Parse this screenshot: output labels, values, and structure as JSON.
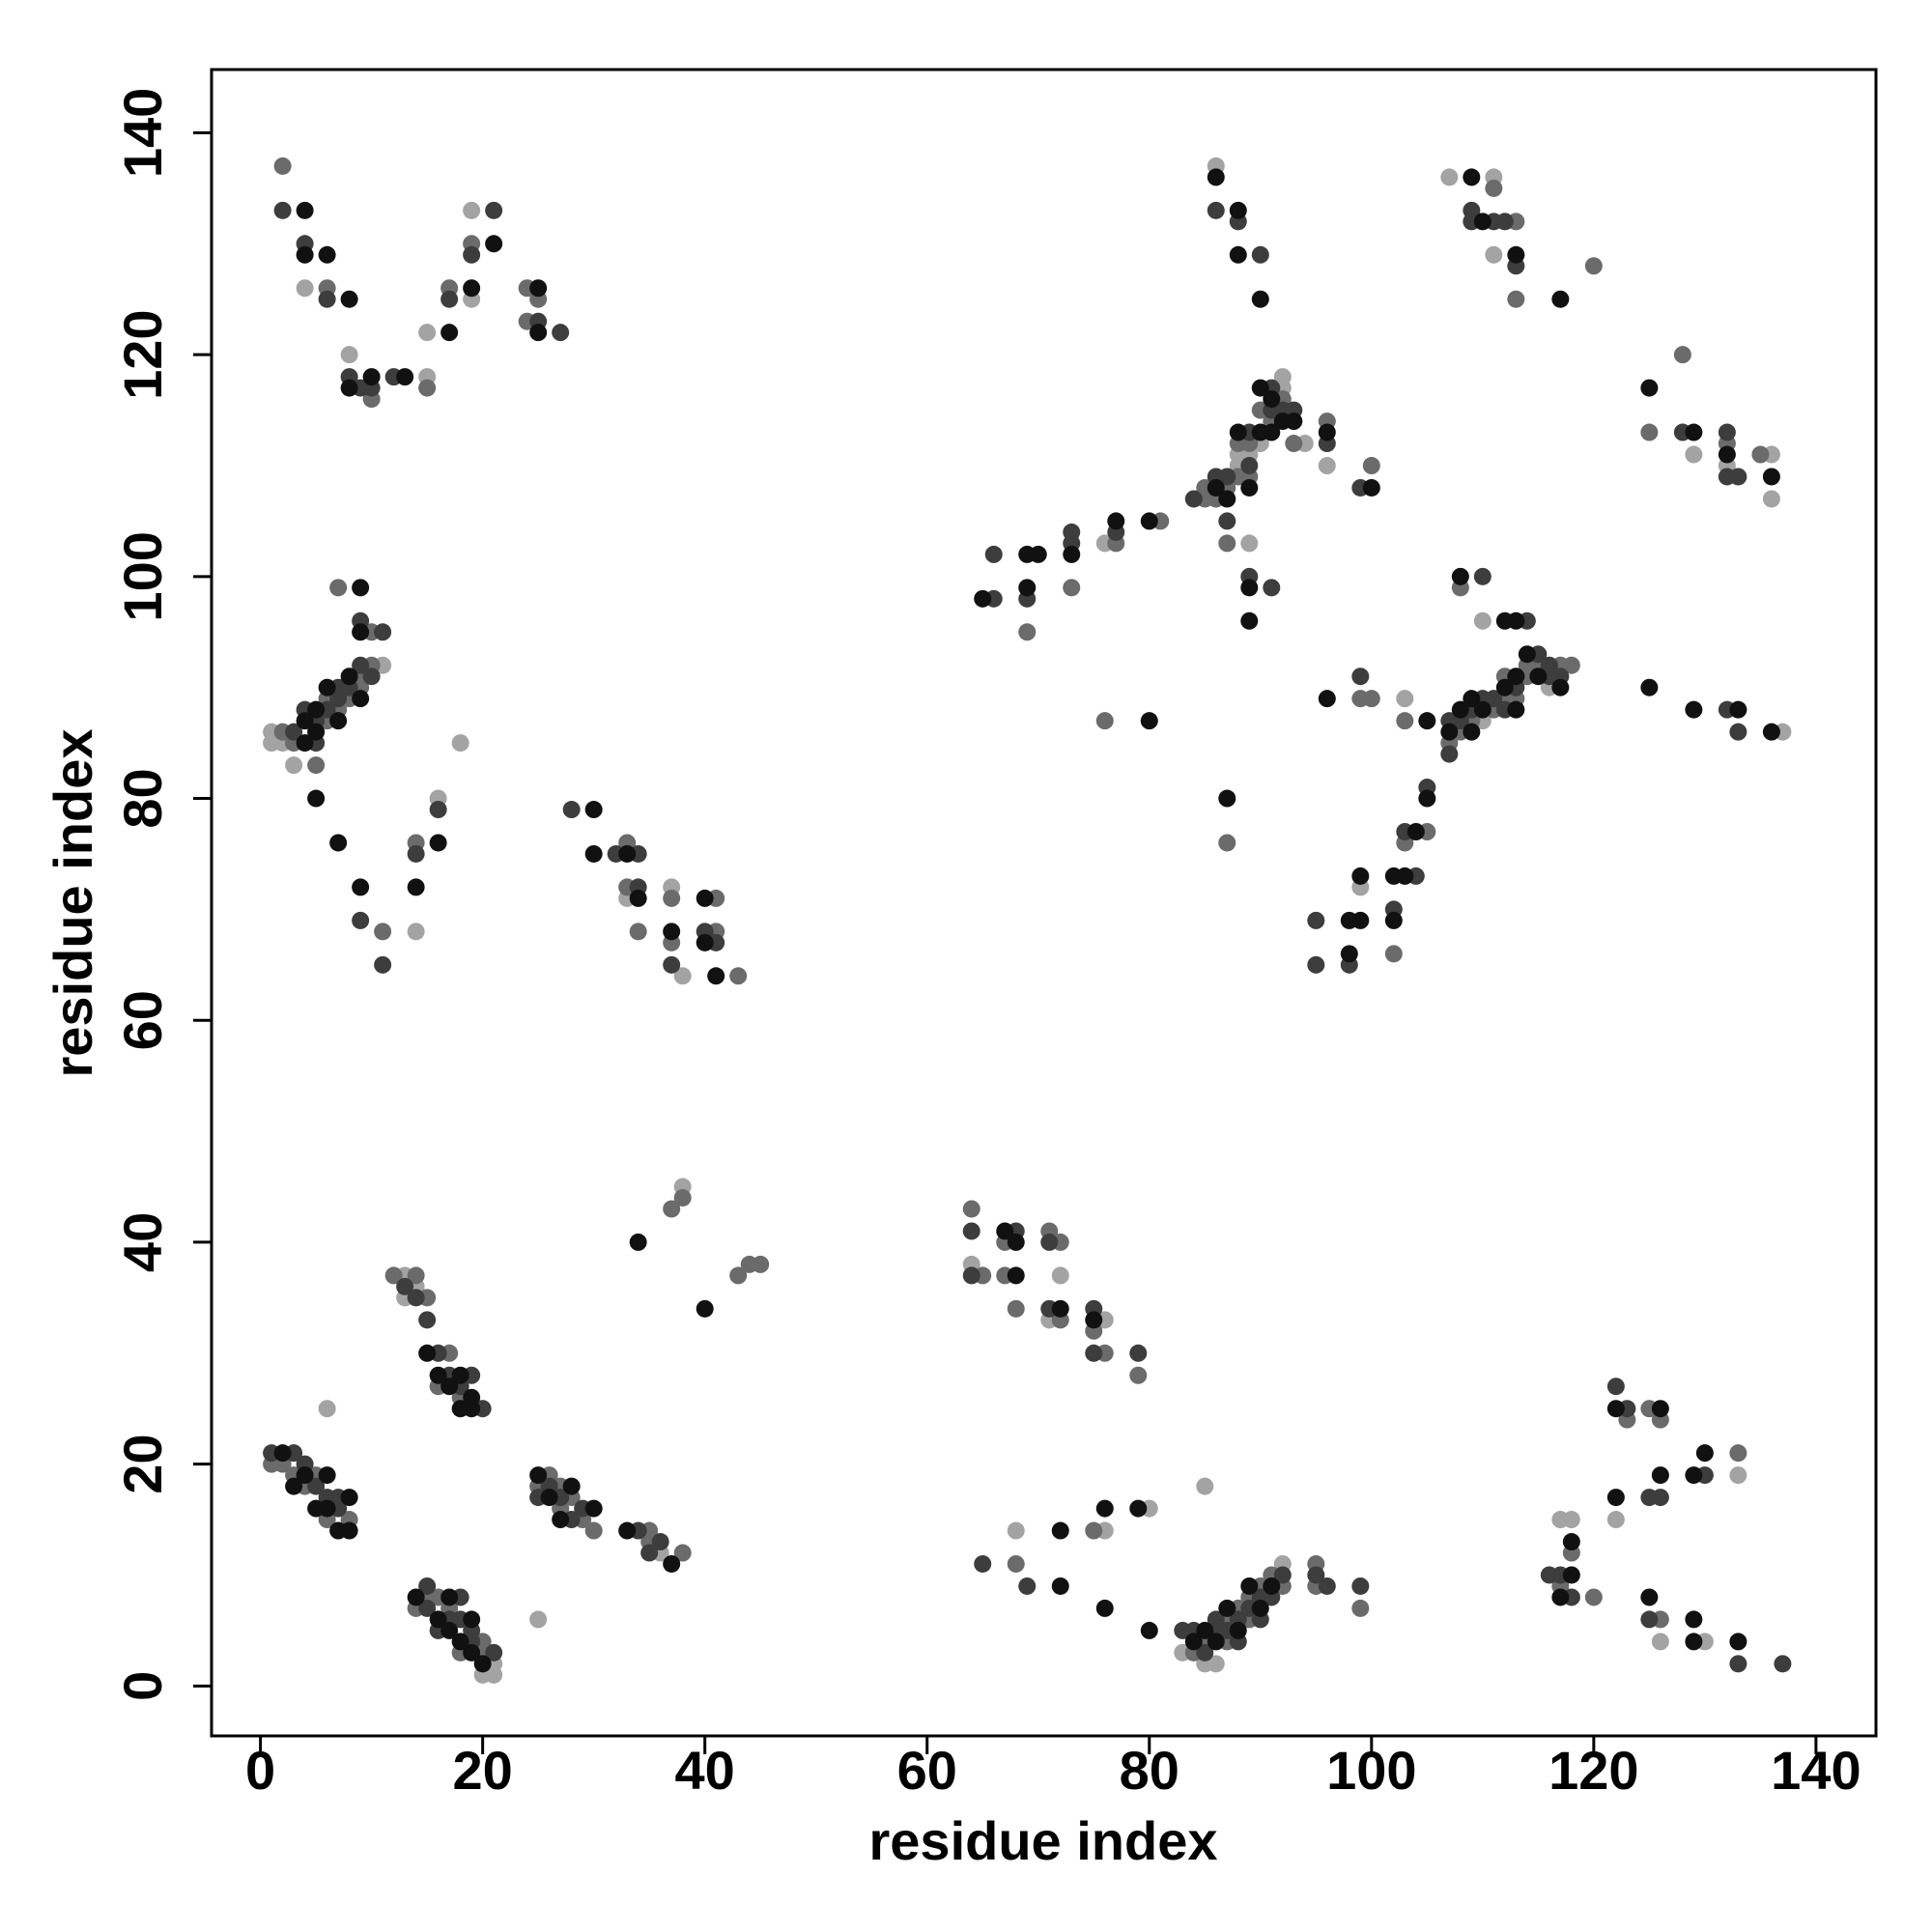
{
  "chart_data": {
    "type": "scatter",
    "xlabel": "residue index",
    "ylabel": "residue index",
    "xlim": [
      -4.4,
      145.4
    ],
    "ylim": [
      -4.5,
      145.7
    ],
    "xticks": [
      0,
      20,
      40,
      60,
      80,
      100,
      120,
      140
    ],
    "yticks": [
      0,
      20,
      40,
      60,
      80,
      100,
      120,
      140
    ],
    "series": [
      {
        "color": "#a3a3a3",
        "x": [
          6,
          13,
          13,
          14,
          20,
          21,
          21,
          25,
          36,
          38,
          64,
          68,
          72,
          71,
          76,
          76,
          80,
          83,
          85,
          86,
          85,
          92,
          117,
          118,
          122,
          126,
          130,
          133,
          4,
          8,
          15,
          15,
          19,
          19,
          1,
          1,
          2,
          3,
          11,
          14,
          16,
          18,
          33,
          37,
          38,
          86,
          111,
          111,
          107,
          76,
          89,
          88,
          88,
          89,
          90,
          92,
          92,
          94,
          96,
          129,
          132,
          136,
          136,
          110,
          110,
          137,
          99,
          103,
          110,
          116
        ],
        "values": [
          25,
          37,
          35,
          36,
          1,
          1,
          2,
          6,
          12,
          45,
          38,
          14,
          37,
          33,
          33,
          14,
          16,
          3,
          2,
          2,
          18,
          11,
          15,
          15,
          15,
          4,
          4,
          19,
          126,
          120,
          122,
          118,
          133,
          125,
          86,
          85,
          85,
          83,
          92,
          68,
          80,
          85,
          71,
          72,
          64,
          137,
          136,
          129,
          136,
          103,
          103,
          110,
          111,
          111,
          112,
          118,
          117,
          112,
          110,
          111,
          110,
          111,
          107,
          96,
          88,
          86,
          72,
          89,
          87,
          90
        ]
      },
      {
        "color": "#6b6b6b",
        "x": [
          1,
          2,
          3,
          4,
          5,
          6,
          8,
          12,
          14,
          15,
          16,
          17,
          18,
          14,
          15,
          16,
          17,
          18,
          20,
          20,
          25,
          26,
          27,
          27,
          28,
          29,
          30,
          35,
          35,
          38,
          37,
          38,
          43,
          44,
          45,
          64,
          65,
          67,
          67,
          68,
          71,
          72,
          72,
          75,
          76,
          79,
          68,
          75,
          84,
          85,
          87,
          87,
          88,
          89,
          89,
          90,
          91,
          92,
          95,
          95,
          99,
          117,
          118,
          120,
          123,
          125,
          126,
          126,
          133,
          2,
          6,
          10,
          15,
          17,
          19,
          24,
          25,
          24,
          2,
          3,
          5,
          6,
          6,
          7,
          7,
          8,
          9,
          9,
          10,
          10,
          11,
          14,
          33,
          33,
          34,
          37,
          37,
          41,
          41,
          43,
          113,
          113,
          120,
          111,
          69,
          73,
          77,
          81,
          85,
          85,
          86,
          87,
          87,
          88,
          88,
          89,
          89,
          90,
          91,
          92,
          93,
          96,
          100,
          87,
          76,
          125,
          128,
          132,
          135,
          108,
          99,
          100,
          102,
          103,
          103,
          105,
          107,
          108,
          109,
          111,
          112,
          112,
          113,
          114,
          114,
          115,
          117,
          118
        ],
        "values": [
          20,
          20,
          19,
          18,
          19,
          15,
          15,
          37,
          37,
          35,
          27,
          30,
          26,
          7,
          8,
          8,
          7,
          3,
          4,
          3,
          18,
          19,
          16,
          18,
          17,
          15,
          14,
          14,
          13,
          12,
          43,
          44,
          37,
          38,
          38,
          43,
          37,
          40,
          37,
          34,
          41,
          40,
          33,
          32,
          30,
          28,
          11,
          14,
          3,
          4,
          6,
          4,
          7,
          8,
          6,
          9,
          10,
          9,
          11,
          9,
          7,
          9,
          12,
          8,
          24,
          25,
          24,
          6,
          21,
          137,
          126,
          116,
          117,
          126,
          130,
          126,
          125,
          123,
          86,
          85,
          83,
          89,
          87,
          88,
          99,
          89,
          91,
          90,
          95,
          92,
          68,
          76,
          76,
          72,
          68,
          71,
          67,
          71,
          68,
          64,
          132,
          125,
          128,
          135,
          95,
          99,
          103,
          105,
          108,
          107,
          107,
          108,
          103,
          112,
          109,
          112,
          109,
          115,
          114,
          116,
          112,
          114,
          110,
          76,
          87,
          113,
          120,
          112,
          111,
          99,
          89,
          89,
          66,
          87,
          76,
          77,
          85,
          86,
          87,
          88,
          91,
          89,
          89,
          92,
          91,
          92,
          92,
          92
        ]
      },
      {
        "color": "#3d3d3d",
        "x": [
          1,
          3,
          4,
          5,
          6,
          7,
          7,
          13,
          14,
          15,
          16,
          17,
          18,
          19,
          20,
          15,
          15,
          16,
          17,
          18,
          18,
          19,
          19,
          21,
          25,
          26,
          27,
          28,
          29,
          34,
          35,
          36,
          64,
          64,
          68,
          71,
          71,
          75,
          75,
          79,
          65,
          69,
          83,
          84,
          85,
          86,
          86,
          87,
          88,
          88,
          89,
          90,
          90,
          91,
          92,
          95,
          96,
          99,
          117,
          118,
          116,
          122,
          123,
          125,
          125,
          126,
          130,
          133,
          137,
          2,
          4,
          6,
          8,
          9,
          10,
          12,
          17,
          19,
          21,
          25,
          27,
          3,
          4,
          5,
          5,
          6,
          7,
          7,
          8,
          9,
          9,
          10,
          11,
          9,
          11,
          14,
          16,
          28,
          32,
          34,
          34,
          37,
          40,
          41,
          86,
          88,
          90,
          109,
          109,
          111,
          113,
          112,
          66,
          66,
          69,
          73,
          73,
          77,
          84,
          86,
          87,
          87,
          89,
          89,
          89,
          91,
          91,
          91,
          92,
          93,
          96,
          99,
          128,
          132,
          132,
          133,
          110,
          114,
          132,
          133,
          95,
          95,
          98,
          99,
          102,
          103,
          104,
          105,
          107,
          107,
          108,
          109,
          110,
          111,
          112,
          113,
          115,
          116,
          117,
          116
        ],
        "values": [
          21,
          21,
          20,
          18,
          17,
          17,
          16,
          36,
          35,
          33,
          30,
          28,
          27,
          28,
          25,
          9,
          7,
          5,
          6,
          8,
          6,
          5,
          4,
          3,
          17,
          18,
          17,
          15,
          16,
          14,
          12,
          13,
          41,
          37,
          41,
          40,
          34,
          34,
          30,
          30,
          11,
          9,
          5,
          5,
          3,
          6,
          5,
          5,
          6,
          4,
          7,
          8,
          6,
          8,
          10,
          10,
          9,
          9,
          10,
          8,
          10,
          27,
          25,
          6,
          17,
          17,
          19,
          2,
          2,
          133,
          130,
          125,
          118,
          117,
          117,
          118,
          125,
          129,
          133,
          123,
          122,
          86,
          88,
          87,
          85,
          88,
          89,
          90,
          90,
          92,
          96,
          91,
          95,
          69,
          65,
          75,
          79,
          79,
          75,
          75,
          72,
          65,
          68,
          67,
          133,
          132,
          129,
          133,
          132,
          132,
          128,
          132,
          98,
          102,
          98,
          104,
          103,
          104,
          107,
          109,
          109,
          105,
          113,
          110,
          100,
          117,
          115,
          99,
          115,
          115,
          112,
          108,
          113,
          113,
          109,
          109,
          100,
          96,
          88,
          86,
          69,
          65,
          65,
          91,
          70,
          77,
          73,
          81,
          87,
          84,
          87,
          88,
          89,
          89,
          88,
          90,
          93,
          92,
          91,
          91
        ]
      },
      {
        "color": "#111111",
        "x": [
          2,
          3,
          4,
          5,
          6,
          6,
          7,
          8,
          8,
          15,
          16,
          17,
          18,
          18,
          19,
          19,
          14,
          16,
          17,
          17,
          18,
          19,
          19,
          20,
          25,
          26,
          27,
          28,
          30,
          33,
          37,
          34,
          40,
          67,
          68,
          68,
          72,
          75,
          72,
          72,
          76,
          76,
          79,
          80,
          84,
          85,
          86,
          87,
          88,
          89,
          90,
          91,
          117,
          118,
          118,
          122,
          122,
          125,
          126,
          126,
          129,
          129,
          129,
          130,
          133,
          4,
          4,
          6,
          8,
          8,
          10,
          13,
          17,
          19,
          21,
          25,
          25,
          4,
          4,
          5,
          5,
          5,
          6,
          7,
          7,
          8,
          9,
          9,
          9,
          9,
          14,
          16,
          30,
          30,
          33,
          34,
          37,
          40,
          40,
          41,
          86,
          88,
          88,
          90,
          109,
          110,
          113,
          117,
          65,
          69,
          69,
          70,
          73,
          77,
          80,
          86,
          87,
          88,
          89,
          89,
          89,
          90,
          90,
          91,
          91,
          92,
          93,
          96,
          100,
          87,
          80,
          125,
          129,
          132,
          136,
          108,
          112,
          113,
          125,
          129,
          133,
          136,
          98,
          98,
          99,
          99,
          96,
          102,
          102,
          103,
          104,
          105,
          105,
          107,
          108,
          109,
          109,
          110,
          112,
          113,
          113,
          114,
          115,
          117
        ],
        "values": [
          21,
          18,
          19,
          16,
          19,
          16,
          14,
          17,
          14,
          30,
          28,
          27,
          28,
          25,
          26,
          25,
          8,
          6,
          8,
          5,
          4,
          6,
          3,
          2,
          19,
          17,
          15,
          18,
          16,
          14,
          11,
          40,
          34,
          41,
          40,
          37,
          34,
          33,
          14,
          9,
          16,
          7,
          16,
          5,
          4,
          5,
          4,
          7,
          5,
          9,
          7,
          9,
          8,
          10,
          13,
          17,
          25,
          8,
          25,
          19,
          19,
          6,
          4,
          21,
          4,
          133,
          129,
          129,
          125,
          117,
          118,
          118,
          122,
          126,
          130,
          126,
          122,
          87,
          85,
          88,
          86,
          80,
          90,
          87,
          76,
          91,
          99,
          95,
          89,
          72,
          72,
          76,
          79,
          75,
          75,
          71,
          68,
          71,
          67,
          64,
          136,
          133,
          129,
          125,
          136,
          132,
          129,
          125,
          98,
          102,
          99,
          102,
          102,
          105,
          105,
          108,
          107,
          113,
          108,
          99,
          96,
          117,
          113,
          116,
          113,
          114,
          114,
          113,
          108,
          80,
          87,
          117,
          113,
          111,
          109,
          100,
          96,
          96,
          90,
          88,
          88,
          86,
          69,
          66,
          73,
          69,
          89,
          73,
          69,
          73,
          77,
          87,
          80,
          86,
          88,
          89,
          86,
          88,
          90,
          91,
          88,
          93,
          91,
          90
        ]
      }
    ]
  }
}
